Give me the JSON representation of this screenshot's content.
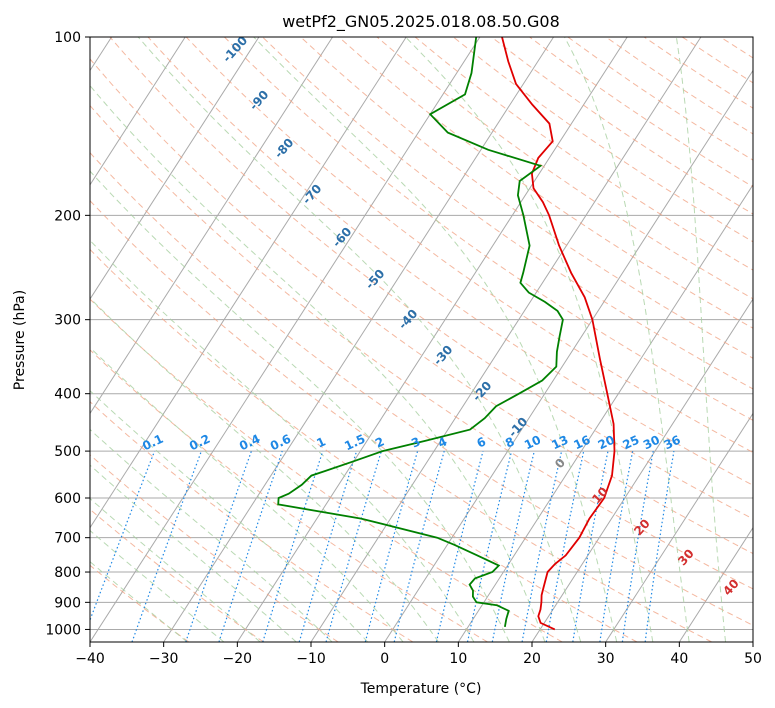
{
  "chart_data": {
    "type": "line",
    "title": "wetPf2_GN05.2025.018.08.50.G08",
    "xlabel": "Temperature (°C)",
    "ylabel": "Pressure (hPa)",
    "xlim": [
      -40,
      50
    ],
    "ylim": [
      1050,
      100
    ],
    "y_scale": "log",
    "grid": true,
    "x_ticks": [
      -40,
      -30,
      -20,
      -10,
      0,
      10,
      20,
      30,
      40,
      50
    ],
    "y_ticks": [
      100,
      200,
      300,
      400,
      500,
      600,
      700,
      800,
      900,
      1000
    ],
    "series": [
      {
        "color": "#e00000",
        "points": [
          [
            1000,
            22.0
          ],
          [
            975,
            19.5
          ],
          [
            950,
            18.6
          ],
          [
            925,
            18.3
          ],
          [
            900,
            17.8
          ],
          [
            875,
            17.2
          ],
          [
            850,
            16.8
          ],
          [
            800,
            16.0
          ],
          [
            775,
            16.3
          ],
          [
            750,
            17.0
          ],
          [
            700,
            17.3
          ],
          [
            650,
            17.0
          ],
          [
            600,
            17.2
          ],
          [
            550,
            16.3
          ],
          [
            500,
            14.5
          ],
          [
            450,
            12.0
          ],
          [
            400,
            8.5
          ],
          [
            350,
            4.5
          ],
          [
            300,
            0.0
          ],
          [
            275,
            -3.0
          ],
          [
            250,
            -7.0
          ],
          [
            225,
            -11.0
          ],
          [
            200,
            -15.0
          ],
          [
            190,
            -17.0
          ],
          [
            180,
            -19.5
          ],
          [
            170,
            -21.0
          ],
          [
            160,
            -21.5
          ],
          [
            150,
            -21.0
          ],
          [
            140,
            -23.0
          ],
          [
            130,
            -27.0
          ],
          [
            120,
            -31.0
          ],
          [
            110,
            -34.0
          ],
          [
            100,
            -37.0
          ]
        ]
      },
      {
        "color": "#008000",
        "points": [
          [
            990,
            15.0
          ],
          [
            960,
            14.5
          ],
          [
            930,
            14.1
          ],
          [
            910,
            12.0
          ],
          [
            900,
            9.0
          ],
          [
            880,
            8.0
          ],
          [
            860,
            7.5
          ],
          [
            840,
            6.5
          ],
          [
            820,
            6.7
          ],
          [
            800,
            8.5
          ],
          [
            780,
            8.8
          ],
          [
            750,
            5.0
          ],
          [
            720,
            1.0
          ],
          [
            700,
            -2.0
          ],
          [
            650,
            -14.0
          ],
          [
            615,
            -26.5
          ],
          [
            600,
            -27.0
          ],
          [
            590,
            -26.0
          ],
          [
            570,
            -25.0
          ],
          [
            550,
            -24.5
          ],
          [
            540,
            -23.0
          ],
          [
            520,
            -20.0
          ],
          [
            500,
            -17.0
          ],
          [
            480,
            -12.0
          ],
          [
            460,
            -7.0
          ],
          [
            440,
            -6.0
          ],
          [
            420,
            -5.5
          ],
          [
            400,
            -3.5
          ],
          [
            380,
            -1.5
          ],
          [
            360,
            -0.8
          ],
          [
            340,
            -2.0
          ],
          [
            320,
            -3.0
          ],
          [
            300,
            -4.0
          ],
          [
            290,
            -5.5
          ],
          [
            280,
            -8.0
          ],
          [
            270,
            -11.0
          ],
          [
            260,
            -13.0
          ],
          [
            250,
            -13.5
          ],
          [
            225,
            -15.0
          ],
          [
            200,
            -18.5
          ],
          [
            185,
            -21.0
          ],
          [
            175,
            -22.0
          ],
          [
            165,
            -20.5
          ],
          [
            155,
            -29.0
          ],
          [
            145,
            -36.0
          ],
          [
            135,
            -40.0
          ],
          [
            125,
            -37.0
          ],
          [
            115,
            -38.0
          ],
          [
            100,
            -40.5
          ]
        ]
      }
    ],
    "dry_adiabat_labels": [
      "-100",
      "-90",
      "-80",
      "-70",
      "-60",
      "-50",
      "-40",
      "-30",
      "-20",
      "-10"
    ],
    "moist_adiabat_labels": [
      "0",
      "10",
      "20",
      "30",
      "40"
    ],
    "mixing_ratio_labels": [
      "0.1",
      "0.2",
      "0.4",
      "0.6",
      "1",
      "1.5",
      "2",
      "3",
      "4",
      "6",
      "8",
      "10",
      "13",
      "16",
      "20",
      "25",
      "30",
      "36"
    ],
    "colors": {
      "isotherm": "#aaaaaa",
      "isobar": "#aaaaaa",
      "dry_adiabat": "#f0a080",
      "moist_adiabat": "#a8d0a0",
      "mixing_ratio": "#1e88e5",
      "tan_adiabat": "#d8c0a0"
    }
  }
}
